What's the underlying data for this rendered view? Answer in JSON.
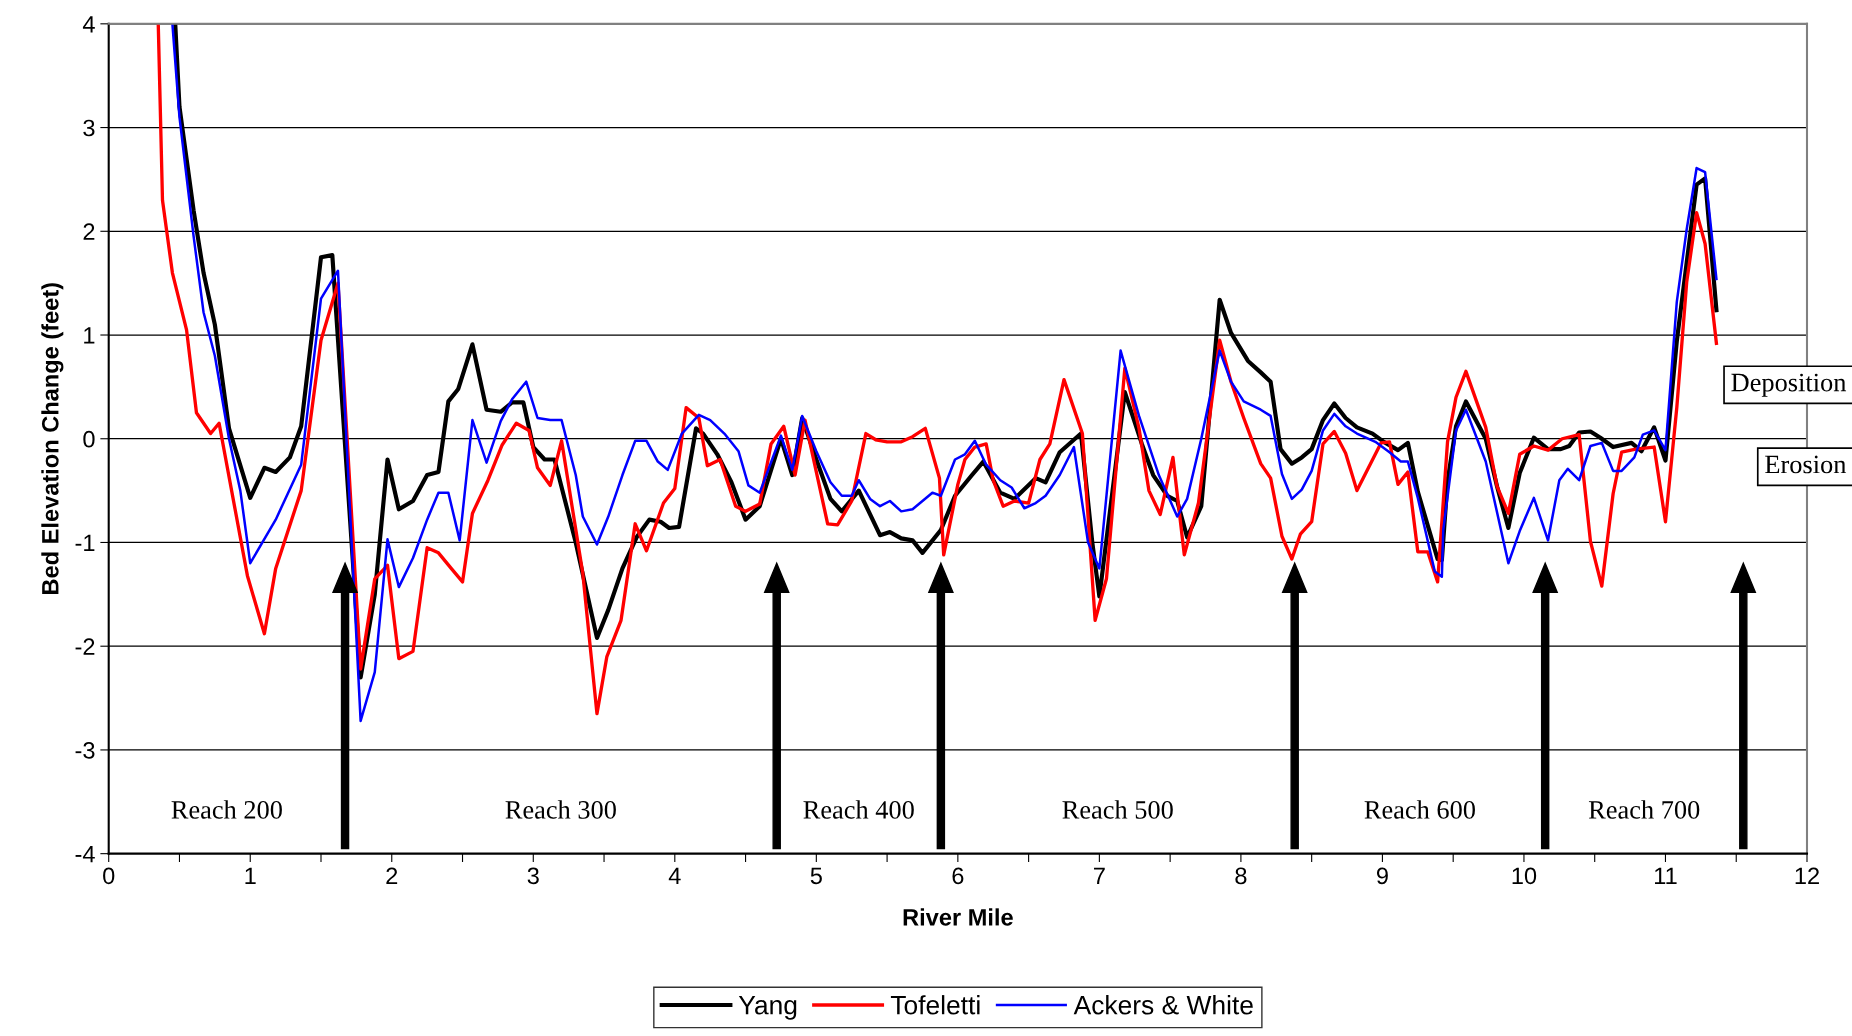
{
  "chart_data": {
    "type": "line",
    "xlabel": "River Mile",
    "ylabel": "Bed Elevation Change (feet)",
    "xlim": [
      0,
      12
    ],
    "ylim": [
      -4,
      4
    ],
    "xticks": [
      0,
      {
        "value": 0.5,
        "label": null
      },
      1,
      {
        "value": 1.5,
        "label": null
      },
      2,
      {
        "value": 2.5,
        "label": null
      },
      3,
      {
        "value": 3.5,
        "label": null
      },
      4,
      {
        "value": 4.5,
        "label": null
      },
      5,
      {
        "value": 5.5,
        "label": null
      },
      6,
      {
        "value": 6.5,
        "label": null
      },
      7,
      {
        "value": 7.5,
        "label": null
      },
      8,
      {
        "value": 8.5,
        "label": null
      },
      9,
      {
        "value": 9.5,
        "label": null
      },
      10,
      {
        "value": 10.5,
        "label": null
      },
      11,
      {
        "value": 11.5,
        "label": null
      },
      12
    ],
    "yticks": [
      -4,
      -3,
      -2,
      -1,
      0,
      1,
      2,
      3,
      4
    ],
    "grid": "y",
    "legend": "bottom",
    "marker": "none",
    "line_style": "solid",
    "series": [
      {
        "name": "Yang",
        "color": "#000000",
        "x": [
          0.47,
          0.5,
          0.6,
          0.67,
          0.75,
          0.85,
          1.0,
          1.1,
          1.18,
          1.28,
          1.36,
          1.5,
          1.58,
          1.78,
          1.88,
          1.97,
          2.05,
          2.15,
          2.25,
          2.33,
          2.4,
          2.47,
          2.57,
          2.67,
          2.77,
          2.85,
          2.93,
          3.0,
          3.08,
          3.15,
          3.3,
          3.45,
          3.53,
          3.63,
          3.73,
          3.82,
          3.9,
          3.96,
          4.03,
          4.15,
          4.2,
          4.3,
          4.4,
          4.5,
          4.6,
          4.75,
          4.83,
          4.9,
          5.0,
          5.1,
          5.18,
          5.3,
          5.45,
          5.52,
          5.6,
          5.68,
          5.75,
          5.88,
          5.98,
          6.1,
          6.18,
          6.3,
          6.4,
          6.55,
          6.62,
          6.72,
          6.87,
          6.95,
          7.0,
          7.18,
          7.3,
          7.38,
          7.48,
          7.55,
          7.62,
          7.72,
          7.85,
          7.93,
          8.05,
          8.14,
          8.21,
          8.28,
          8.36,
          8.43,
          8.5,
          8.58,
          8.66,
          8.74,
          8.82,
          8.93,
          9.01,
          9.11,
          9.18,
          9.25,
          9.39,
          9.42,
          9.46,
          9.52,
          9.59,
          9.73,
          9.81,
          9.89,
          9.97,
          10.07,
          10.17,
          10.26,
          10.32,
          10.39,
          10.47,
          10.54,
          10.63,
          10.76,
          10.83,
          10.92,
          11.0,
          11.08,
          11.15,
          11.22,
          11.28,
          11.36
        ],
        "values": [
          4.0,
          3.2,
          2.2,
          1.6,
          1.1,
          0.1,
          -0.57,
          -0.28,
          -0.32,
          -0.18,
          0.12,
          1.75,
          1.77,
          -2.3,
          -1.5,
          -0.2,
          -0.68,
          -0.6,
          -0.35,
          -0.32,
          0.36,
          0.48,
          0.91,
          0.28,
          0.26,
          0.35,
          0.35,
          -0.08,
          -0.2,
          -0.2,
          -1.0,
          -1.92,
          -1.65,
          -1.25,
          -0.95,
          -0.78,
          -0.8,
          -0.86,
          -0.85,
          0.1,
          0.05,
          -0.15,
          -0.42,
          -0.78,
          -0.65,
          0.0,
          -0.35,
          0.2,
          -0.2,
          -0.58,
          -0.7,
          -0.5,
          -0.93,
          -0.9,
          -0.96,
          -0.98,
          -1.1,
          -0.88,
          -0.55,
          -0.35,
          -0.22,
          -0.52,
          -0.58,
          -0.38,
          -0.42,
          -0.13,
          0.05,
          -1.0,
          -1.52,
          0.45,
          -0.05,
          -0.35,
          -0.55,
          -0.6,
          -0.95,
          -0.65,
          1.34,
          1.02,
          0.75,
          0.64,
          0.55,
          -0.1,
          -0.24,
          -0.18,
          -0.1,
          0.18,
          0.34,
          0.2,
          0.11,
          0.05,
          -0.03,
          -0.11,
          -0.04,
          -0.51,
          -1.16,
          -1.17,
          -0.41,
          0.12,
          0.36,
          0.0,
          -0.46,
          -0.86,
          -0.33,
          0.01,
          -0.1,
          -0.1,
          -0.07,
          0.06,
          0.07,
          0.01,
          -0.08,
          -0.04,
          -0.12,
          0.11,
          -0.21,
          0.94,
          1.7,
          2.45,
          2.51,
          1.24
        ]
      },
      {
        "name": "Tofeletti",
        "color": "#ff0000",
        "x": [
          0.35,
          0.38,
          0.45,
          0.55,
          0.62,
          0.72,
          0.78,
          0.98,
          1.1,
          1.18,
          1.36,
          1.5,
          1.62,
          1.78,
          1.88,
          1.97,
          2.05,
          2.15,
          2.25,
          2.33,
          2.42,
          2.5,
          2.57,
          2.68,
          2.78,
          2.88,
          2.97,
          3.03,
          3.12,
          3.2,
          3.35,
          3.45,
          3.52,
          3.62,
          3.72,
          3.8,
          3.92,
          4.0,
          4.08,
          4.17,
          4.23,
          4.32,
          4.43,
          4.5,
          4.6,
          4.68,
          4.77,
          4.85,
          4.92,
          5.08,
          5.15,
          5.25,
          5.35,
          5.42,
          5.5,
          5.6,
          5.68,
          5.77,
          5.87,
          5.9,
          6.0,
          6.05,
          6.12,
          6.2,
          6.25,
          6.32,
          6.4,
          6.5,
          6.58,
          6.65,
          6.75,
          6.88,
          6.97,
          7.05,
          7.18,
          7.28,
          7.35,
          7.43,
          7.52,
          7.6,
          7.7,
          7.85,
          7.93,
          8.02,
          8.14,
          8.21,
          8.29,
          8.36,
          8.42,
          8.5,
          8.58,
          8.66,
          8.74,
          8.82,
          8.99,
          9.05,
          9.11,
          9.18,
          9.25,
          9.32,
          9.39,
          9.46,
          9.52,
          9.59,
          9.73,
          9.81,
          9.89,
          9.97,
          10.07,
          10.17,
          10.27,
          10.39,
          10.47,
          10.55,
          10.63,
          10.69,
          10.79,
          10.92,
          11.0,
          11.08,
          11.15,
          11.22,
          11.28,
          11.36
        ],
        "values": [
          4.0,
          2.3,
          1.6,
          1.05,
          0.25,
          0.05,
          0.15,
          -1.32,
          -1.88,
          -1.25,
          -0.5,
          0.95,
          1.5,
          -2.22,
          -1.35,
          -1.22,
          -2.12,
          -2.05,
          -1.05,
          -1.1,
          -1.25,
          -1.38,
          -0.72,
          -0.4,
          -0.06,
          0.15,
          0.08,
          -0.28,
          -0.45,
          -0.02,
          -1.3,
          -2.65,
          -2.1,
          -1.75,
          -0.82,
          -1.08,
          -0.62,
          -0.48,
          0.3,
          0.2,
          -0.26,
          -0.2,
          -0.65,
          -0.7,
          -0.63,
          -0.05,
          0.12,
          -0.35,
          0.18,
          -0.82,
          -0.83,
          -0.6,
          0.05,
          -0.01,
          -0.03,
          -0.03,
          0.02,
          0.1,
          -0.38,
          -1.12,
          -0.44,
          -0.2,
          -0.08,
          -0.05,
          -0.4,
          -0.65,
          -0.6,
          -0.62,
          -0.2,
          -0.05,
          0.57,
          0.05,
          -1.75,
          -1.35,
          0.68,
          0.1,
          -0.5,
          -0.73,
          -0.18,
          -1.12,
          -0.62,
          0.95,
          0.55,
          0.2,
          -0.24,
          -0.38,
          -0.94,
          -1.16,
          -0.92,
          -0.8,
          -0.05,
          0.07,
          -0.14,
          -0.5,
          -0.04,
          -0.03,
          -0.44,
          -0.32,
          -1.09,
          -1.09,
          -1.38,
          -0.03,
          0.4,
          0.65,
          0.11,
          -0.46,
          -0.72,
          -0.15,
          -0.07,
          -0.11,
          0.0,
          0.04,
          -0.99,
          -1.42,
          -0.53,
          -0.13,
          -0.1,
          -0.08,
          -0.8,
          0.3,
          1.51,
          2.18,
          1.88,
          0.92
        ]
      },
      {
        "name": "Ackers & White",
        "color": "#0000ff",
        "x": [
          0.45,
          0.5,
          0.6,
          0.67,
          0.75,
          0.85,
          0.93,
          1.0,
          1.18,
          1.36,
          1.5,
          1.62,
          1.72,
          1.78,
          1.88,
          1.97,
          2.05,
          2.15,
          2.25,
          2.33,
          2.4,
          2.48,
          2.57,
          2.67,
          2.77,
          2.85,
          2.95,
          3.03,
          3.12,
          3.2,
          3.3,
          3.35,
          3.45,
          3.53,
          3.63,
          3.72,
          3.8,
          3.88,
          3.95,
          4.05,
          4.17,
          4.25,
          4.35,
          4.45,
          4.52,
          4.6,
          4.75,
          4.83,
          4.9,
          5.0,
          5.1,
          5.18,
          5.25,
          5.3,
          5.38,
          5.45,
          5.52,
          5.6,
          5.68,
          5.75,
          5.82,
          5.88,
          5.98,
          6.05,
          6.12,
          6.2,
          6.3,
          6.38,
          6.47,
          6.55,
          6.62,
          6.72,
          6.82,
          6.92,
          7.0,
          7.15,
          7.28,
          7.42,
          7.55,
          7.62,
          7.72,
          7.85,
          7.93,
          8.02,
          8.14,
          8.21,
          8.29,
          8.36,
          8.43,
          8.5,
          8.58,
          8.66,
          8.74,
          8.82,
          8.95,
          9.05,
          9.13,
          9.18,
          9.25,
          9.37,
          9.42,
          9.43,
          9.52,
          9.59,
          9.73,
          9.89,
          9.97,
          10.07,
          10.17,
          10.25,
          10.31,
          10.39,
          10.47,
          10.55,
          10.63,
          10.69,
          10.78,
          10.84,
          10.92,
          11.0,
          11.08,
          11.15,
          11.22,
          11.28,
          11.36
        ],
        "values": [
          4.0,
          3.1,
          1.95,
          1.22,
          0.8,
          0.0,
          -0.5,
          -1.2,
          -0.78,
          -0.25,
          1.35,
          1.62,
          -1.1,
          -2.72,
          -2.25,
          -0.97,
          -1.43,
          -1.15,
          -0.78,
          -0.52,
          -0.52,
          -0.98,
          0.18,
          -0.23,
          0.17,
          0.38,
          0.55,
          0.2,
          0.18,
          0.18,
          -0.35,
          -0.75,
          -1.02,
          -0.75,
          -0.35,
          -0.02,
          -0.02,
          -0.22,
          -0.3,
          0.05,
          0.23,
          0.18,
          0.05,
          -0.12,
          -0.45,
          -0.52,
          0.03,
          -0.3,
          0.22,
          -0.12,
          -0.42,
          -0.55,
          -0.55,
          -0.4,
          -0.58,
          -0.65,
          -0.6,
          -0.7,
          -0.68,
          -0.6,
          -0.52,
          -0.55,
          -0.2,
          -0.15,
          -0.02,
          -0.25,
          -0.4,
          -0.47,
          -0.67,
          -0.62,
          -0.55,
          -0.35,
          -0.08,
          -1.0,
          -1.25,
          0.85,
          0.22,
          -0.35,
          -0.75,
          -0.58,
          0.0,
          0.85,
          0.55,
          0.36,
          0.28,
          0.22,
          -0.34,
          -0.58,
          -0.49,
          -0.31,
          0.08,
          0.24,
          0.12,
          0.05,
          -0.03,
          -0.13,
          -0.22,
          -0.22,
          -0.57,
          -1.28,
          -1.33,
          -0.88,
          0.08,
          0.28,
          -0.22,
          -1.2,
          -0.89,
          -0.57,
          -0.98,
          -0.4,
          -0.29,
          -0.4,
          -0.07,
          -0.04,
          -0.31,
          -0.31,
          -0.18,
          0.04,
          0.08,
          -0.11,
          1.32,
          2.02,
          2.61,
          2.57,
          1.54
        ]
      }
    ],
    "ref_lines": [
      {
        "axis": "x",
        "value": 1.67,
        "color": "#000000"
      },
      {
        "axis": "x",
        "value": 4.72,
        "color": "#000000"
      },
      {
        "axis": "x",
        "value": 5.88,
        "color": "#000000"
      },
      {
        "axis": "x",
        "value": 8.38,
        "color": "#000000"
      },
      {
        "axis": "x",
        "value": 10.15,
        "color": "#000000"
      },
      {
        "axis": "x",
        "value": 11.55,
        "color": "#000000"
      }
    ],
    "annotations": [
      "Reach 200",
      "Reach 300",
      "Reach 400",
      "Reach 500",
      "Reach 600",
      "Reach 700",
      "Deposition",
      "Erosion"
    ]
  }
}
